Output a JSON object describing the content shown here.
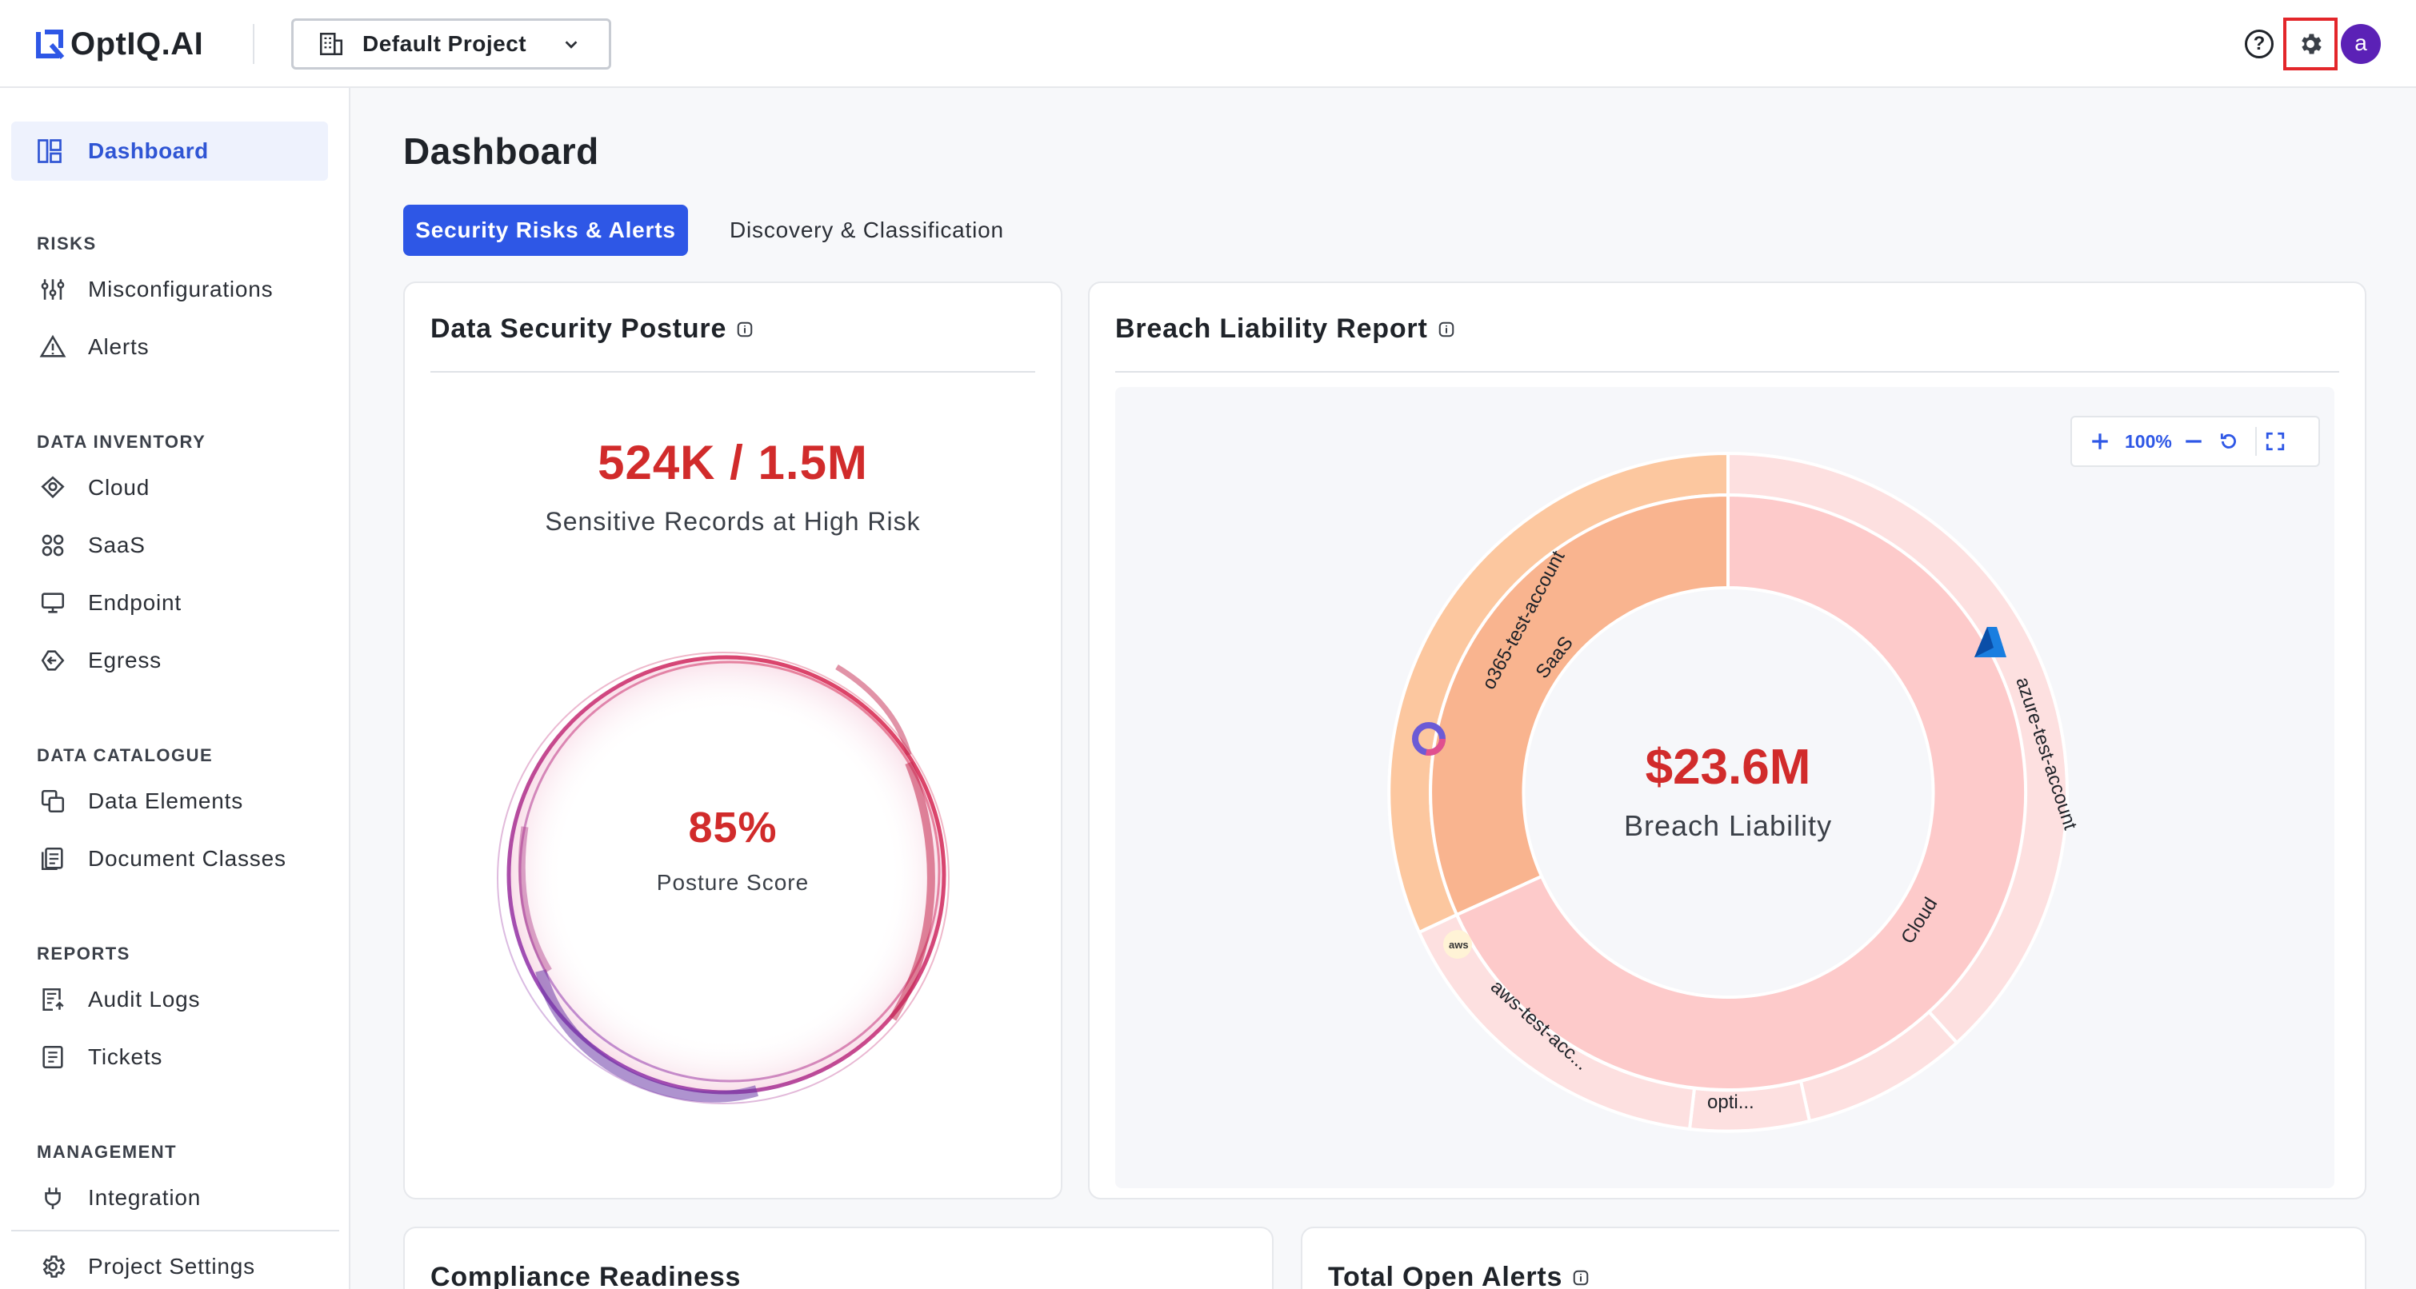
{
  "header": {
    "brand": "OptIQ.AI",
    "project_label": "Default Project"
  },
  "sidebar": {
    "dashboard_label": "Dashboard",
    "sections": [
      {
        "heading": "RISKS",
        "items": [
          "Misconfigurations",
          "Alerts"
        ]
      },
      {
        "heading": "DATA INVENTORY",
        "items": [
          "Cloud",
          "SaaS",
          "Endpoint",
          "Egress"
        ]
      },
      {
        "heading": "DATA CATALOGUE",
        "items": [
          "Data Elements",
          "Document Classes"
        ]
      },
      {
        "heading": "REPORTS",
        "items": [
          "Audit Logs",
          "Tickets"
        ]
      },
      {
        "heading": "MANAGEMENT",
        "items": [
          "Integration"
        ]
      }
    ],
    "project_settings_label": "Project Settings"
  },
  "main": {
    "title": "Dashboard",
    "tabs": [
      "Security Risks & Alerts",
      "Discovery & Classification"
    ],
    "posture_card": {
      "title": "Data Security Posture",
      "records_value": "524K / 1.5M",
      "records_caption": "Sensitive Records at High Risk",
      "score_value": "85%",
      "score_caption": "Posture Score",
      "score": 0.85
    },
    "breach_card": {
      "title": "Breach Liability Report",
      "zoom_level": "100%",
      "total_value": "$23.6M",
      "total_caption": "Breach Liability",
      "inner_labels": [
        "SaaS",
        "Cloud"
      ],
      "outer_labels": [
        "o365-test-account",
        "azure-test-account",
        "aws-test-acc...",
        "opti..."
      ]
    },
    "compliance_card": {
      "title": "Compliance Readiness"
    },
    "alerts_card": {
      "title": "Total Open Alerts"
    }
  },
  "colors": {
    "accent": "#2e57e6",
    "danger": "#d12b2b",
    "saas_inner": "#f9b48f",
    "saas_outer": "#fcc79f",
    "cloud_inner": "#fdcaca",
    "cloud_outer": "#fde0e0"
  }
}
